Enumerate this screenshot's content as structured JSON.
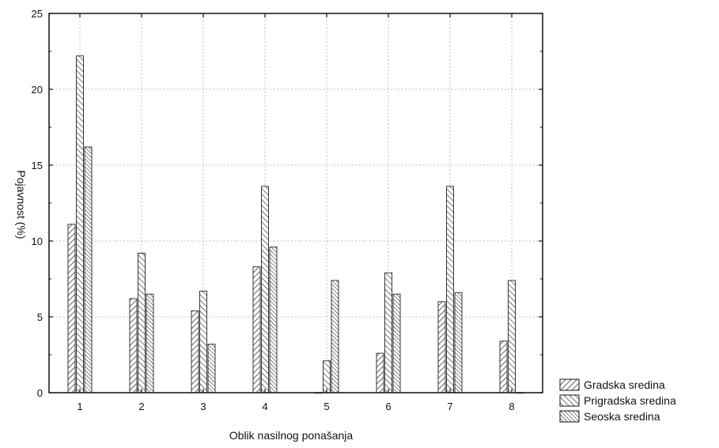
{
  "chart_data": {
    "type": "bar",
    "title": "",
    "xlabel": "Oblik nasilnog ponašanja",
    "ylabel": "Pojavnost (%)",
    "categories": [
      "1",
      "2",
      "3",
      "4",
      "5",
      "6",
      "7",
      "8"
    ],
    "ylim": [
      0,
      25
    ],
    "yticks": [
      0,
      5,
      10,
      15,
      20,
      25
    ],
    "grid": true,
    "legend_position": "bottom-right outside",
    "series": [
      {
        "name": "Gradska sredina",
        "values": [
          11.1,
          6.2,
          5.4,
          8.3,
          0,
          2.6,
          6.0,
          3.4
        ],
        "hatch": "forward",
        "color": "#222222"
      },
      {
        "name": "Prigradska sredina",
        "values": [
          22.2,
          9.2,
          6.7,
          13.6,
          2.1,
          7.9,
          13.6,
          7.4
        ],
        "hatch": "back",
        "color": "#222222"
      },
      {
        "name": "Seoska sredina",
        "values": [
          16.2,
          6.5,
          3.2,
          9.6,
          7.4,
          6.5,
          6.6,
          0
        ],
        "hatch": "back-dense",
        "color": "#222222"
      }
    ]
  }
}
